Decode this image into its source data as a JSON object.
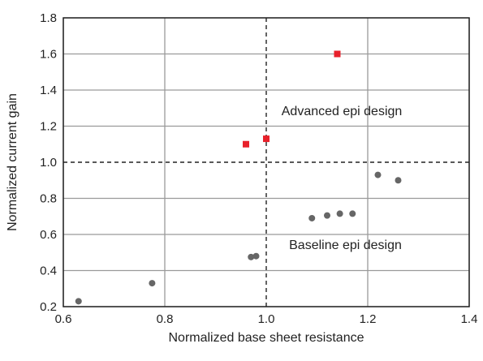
{
  "chart_data": {
    "type": "scatter",
    "title": "",
    "xlabel": "Normalized base sheet resistance",
    "ylabel": "Normalized current gain",
    "xlim": [
      0.6,
      1.4
    ],
    "ylim": [
      0.2,
      1.8
    ],
    "xticks": [
      "0.6",
      "0.8",
      "1.0",
      "1.2",
      "1.4"
    ],
    "yticks": [
      "0.2",
      "0.4",
      "0.6",
      "0.8",
      "1.0",
      "1.2",
      "1.4",
      "1.6",
      "1.8"
    ],
    "grid": true,
    "reference_lines": {
      "x": 1.0,
      "y": 1.0
    },
    "series": [
      {
        "marker": "square",
        "color": "#e8212b",
        "points": [
          {
            "x": 0.96,
            "y": 1.1
          },
          {
            "x": 1.0,
            "y": 1.13
          },
          {
            "x": 1.14,
            "y": 1.6
          }
        ]
      },
      {
        "marker": "circle",
        "color": "#666666",
        "points": [
          {
            "x": 0.63,
            "y": 0.23
          },
          {
            "x": 0.775,
            "y": 0.33
          },
          {
            "x": 0.97,
            "y": 0.475
          },
          {
            "x": 0.98,
            "y": 0.48
          },
          {
            "x": 1.09,
            "y": 0.69
          },
          {
            "x": 1.12,
            "y": 0.705
          },
          {
            "x": 1.145,
            "y": 0.715
          },
          {
            "x": 1.17,
            "y": 0.715
          },
          {
            "x": 1.22,
            "y": 0.93
          },
          {
            "x": 1.26,
            "y": 0.9
          }
        ]
      }
    ],
    "annotations": [
      {
        "text": "Advanced epi design",
        "x": 1.03,
        "y": 1.26
      },
      {
        "text": "Baseline epi design",
        "x": 1.045,
        "y": 0.52
      }
    ]
  }
}
